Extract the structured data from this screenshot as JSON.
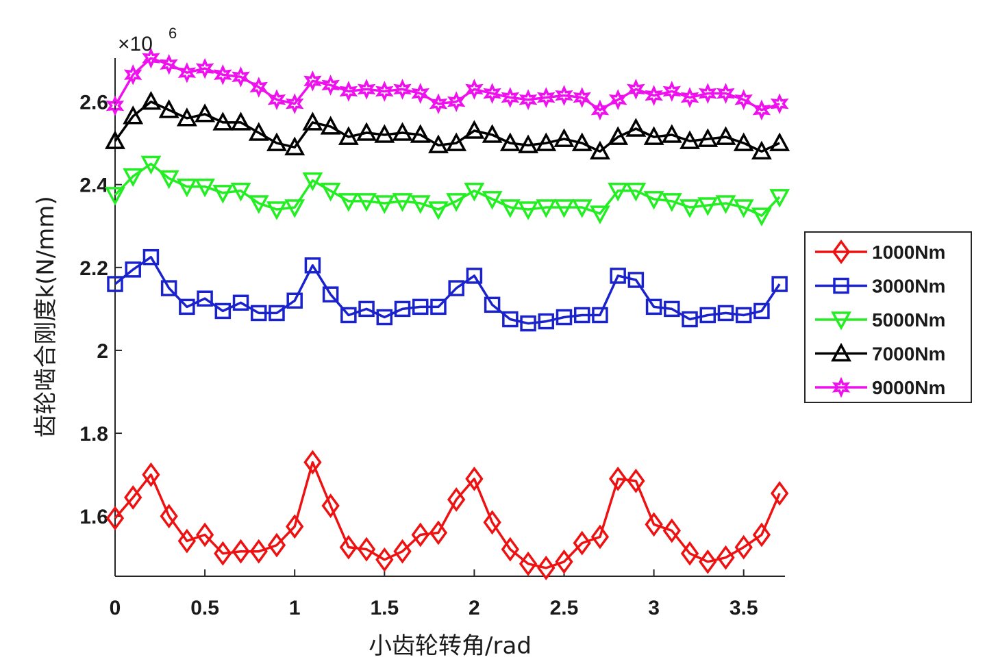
{
  "chart_data": {
    "type": "line",
    "xlabel": "小齿轮转角/rad",
    "ylabel": "齿轮啮合刚度k(N/mm)",
    "exponent_prefix": "×10",
    "exponent_power": "6",
    "xlim": [
      0,
      3.73
    ],
    "ylim": [
      1.455,
      2.705
    ],
    "scale_factor": 1000000,
    "x_ticks": [
      0,
      0.5,
      1,
      1.5,
      2,
      2.5,
      3,
      3.5
    ],
    "x_tick_labels": [
      "0",
      "0.5",
      "1",
      "1.5",
      "2",
      "2.5",
      "3",
      "3.5"
    ],
    "y_ticks": [
      1.6,
      1.8,
      2.0,
      2.2,
      2.4,
      2.6
    ],
    "y_tick_labels": [
      "1.6",
      "1.8",
      "2",
      "2.2",
      "2.4",
      "2.6"
    ],
    "grid": false,
    "legend_position": "right",
    "x": [
      0,
      0.1,
      0.2,
      0.3,
      0.4,
      0.5,
      0.6,
      0.7,
      0.8,
      0.9,
      1.0,
      1.1,
      1.2,
      1.3,
      1.4,
      1.5,
      1.6,
      1.7,
      1.8,
      1.9,
      2.0,
      2.1,
      2.2,
      2.3,
      2.4,
      2.5,
      2.6,
      2.7,
      2.8,
      2.9,
      3.0,
      3.1,
      3.2,
      3.3,
      3.4,
      3.5,
      3.6,
      3.7
    ],
    "series": [
      {
        "name": "1000Nm",
        "color": "#ee1111",
        "marker": "diamond",
        "values": [
          1.595,
          1.645,
          1.7,
          1.6,
          1.54,
          1.555,
          1.51,
          1.515,
          1.515,
          1.53,
          1.575,
          1.73,
          1.625,
          1.525,
          1.52,
          1.495,
          1.515,
          1.555,
          1.56,
          1.64,
          1.69,
          1.585,
          1.52,
          1.485,
          1.475,
          1.49,
          1.535,
          1.55,
          1.69,
          1.685,
          1.58,
          1.565,
          1.51,
          1.49,
          1.5,
          1.525,
          1.555,
          1.655
        ]
      },
      {
        "name": "3000Nm",
        "color": "#1a22cc",
        "marker": "square",
        "values": [
          2.16,
          2.195,
          2.225,
          2.15,
          2.105,
          2.125,
          2.095,
          2.115,
          2.09,
          2.09,
          2.12,
          2.205,
          2.135,
          2.085,
          2.1,
          2.08,
          2.1,
          2.105,
          2.105,
          2.15,
          2.18,
          2.11,
          2.075,
          2.065,
          2.07,
          2.08,
          2.085,
          2.085,
          2.18,
          2.17,
          2.105,
          2.1,
          2.075,
          2.085,
          2.09,
          2.085,
          2.095,
          2.16
        ]
      },
      {
        "name": "5000Nm",
        "color": "#22ee22",
        "marker": "triangle-down",
        "values": [
          2.375,
          2.42,
          2.45,
          2.415,
          2.395,
          2.395,
          2.38,
          2.385,
          2.355,
          2.34,
          2.345,
          2.41,
          2.385,
          2.36,
          2.36,
          2.355,
          2.36,
          2.355,
          2.34,
          2.36,
          2.385,
          2.365,
          2.345,
          2.34,
          2.345,
          2.345,
          2.345,
          2.33,
          2.385,
          2.385,
          2.365,
          2.36,
          2.345,
          2.35,
          2.355,
          2.345,
          2.325,
          2.37
        ]
      },
      {
        "name": "7000Nm",
        "color": "#000000",
        "marker": "triangle-up",
        "values": [
          2.505,
          2.565,
          2.6,
          2.58,
          2.56,
          2.57,
          2.55,
          2.55,
          2.525,
          2.5,
          2.49,
          2.55,
          2.54,
          2.515,
          2.525,
          2.52,
          2.525,
          2.52,
          2.495,
          2.5,
          2.53,
          2.52,
          2.5,
          2.495,
          2.5,
          2.51,
          2.5,
          2.48,
          2.515,
          2.535,
          2.515,
          2.52,
          2.505,
          2.51,
          2.515,
          2.5,
          2.48,
          2.5
        ]
      },
      {
        "name": "9000Nm",
        "color": "#ee11ee",
        "marker": "hexagram",
        "values": [
          2.59,
          2.665,
          2.705,
          2.69,
          2.67,
          2.68,
          2.665,
          2.66,
          2.635,
          2.605,
          2.595,
          2.65,
          2.64,
          2.625,
          2.63,
          2.625,
          2.63,
          2.62,
          2.595,
          2.6,
          2.63,
          2.62,
          2.61,
          2.605,
          2.61,
          2.615,
          2.61,
          2.58,
          2.605,
          2.63,
          2.615,
          2.625,
          2.61,
          2.62,
          2.62,
          2.605,
          2.58,
          2.595
        ]
      }
    ]
  }
}
